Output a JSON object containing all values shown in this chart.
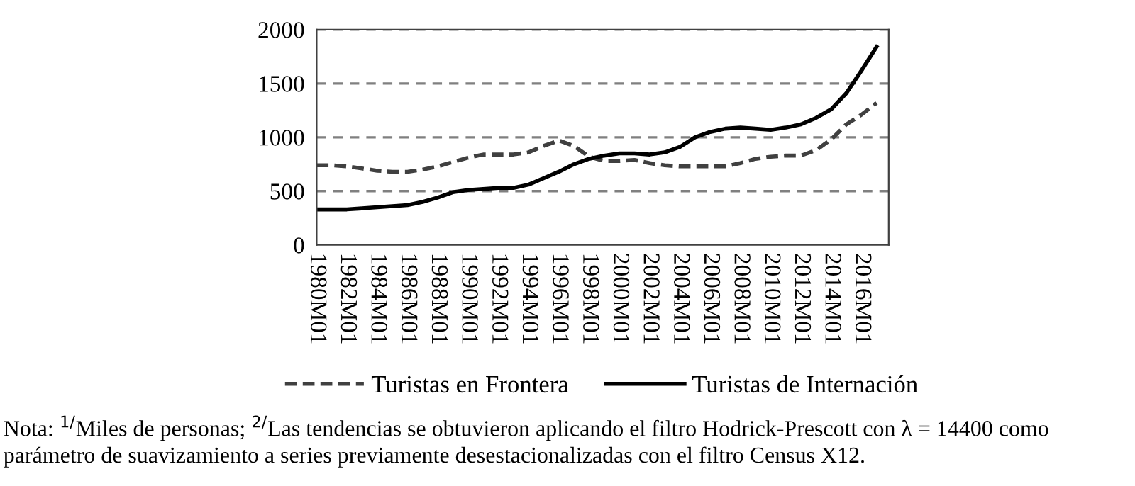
{
  "chart_data": {
    "type": "line",
    "categories": [
      "1980M01",
      null,
      "1982M01",
      null,
      "1984M01",
      null,
      "1986M01",
      null,
      "1988M01",
      null,
      "1990M01",
      null,
      "1992M01",
      null,
      "1994M01",
      null,
      "1996M01",
      null,
      "1998M01",
      null,
      "2000M01",
      null,
      "2002M01",
      null,
      "2004M01",
      null,
      "2006M01",
      null,
      "2008M01",
      null,
      "2010M01",
      null,
      "2012M01",
      null,
      "2014M01",
      null,
      "2016M01",
      null
    ],
    "series": [
      {
        "name": "Turistas en Frontera",
        "color": "#404040",
        "line_style": "dashed",
        "values": [
          740,
          740,
          730,
          710,
          690,
          680,
          680,
          700,
          730,
          770,
          810,
          840,
          840,
          840,
          860,
          920,
          970,
          920,
          820,
          780,
          780,
          790,
          760,
          740,
          730,
          730,
          730,
          730,
          760,
          800,
          820,
          830,
          830,
          880,
          980,
          1120,
          1210,
          1320
        ]
      },
      {
        "name": "Turistas de Internación",
        "color": "#000000",
        "line_style": "solid",
        "values": [
          330,
          330,
          330,
          340,
          350,
          360,
          370,
          400,
          440,
          490,
          510,
          520,
          530,
          530,
          560,
          620,
          680,
          750,
          800,
          830,
          850,
          850,
          840,
          860,
          910,
          1000,
          1050,
          1080,
          1090,
          1080,
          1070,
          1090,
          1120,
          1180,
          1260,
          1410,
          1620,
          1840
        ]
      }
    ],
    "ylim": [
      0,
      2000
    ],
    "yticks": [
      0,
      500,
      1000,
      1500,
      2000
    ],
    "grid": "y",
    "legend": "bottom",
    "marker": "none",
    "annotations": [
      "Nota: $^{1/}$Miles de personas; $^{2/}$Las tendencias se obtuvieron aplicando el filtro Hodrick-Prescott con λ = 14400 como parámetro de suavizamiento a series previamente desestacionalizadas con el filtro Census X12."
    ]
  }
}
